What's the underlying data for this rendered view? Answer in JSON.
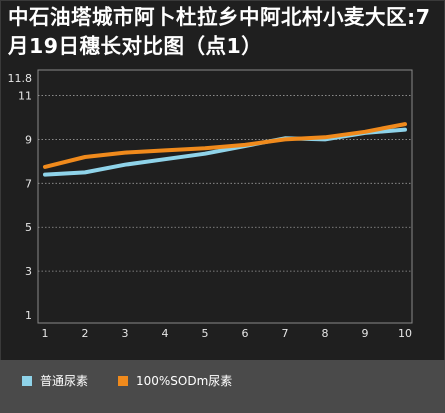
{
  "chart_data": {
    "type": "line",
    "title": "中石油塔城市阿卜杜拉乡中阿北村小麦大区:7月19日穗长对比图（点1）",
    "xlabel": "",
    "ylabel": "",
    "x": [
      1,
      2,
      3,
      4,
      5,
      6,
      7,
      8,
      9,
      10
    ],
    "x_ticks": [
      "1",
      "2",
      "3",
      "4",
      "5",
      "6",
      "7",
      "8",
      "9",
      "10"
    ],
    "y_ticks": [
      "1",
      "3",
      "5",
      "7",
      "9",
      "11",
      "11.8"
    ],
    "y_tick_values": [
      1,
      3,
      5,
      7,
      9,
      11,
      11.8
    ],
    "ylim": [
      1,
      11.8
    ],
    "grid": true,
    "legend_position": "bottom",
    "series": [
      {
        "name": "普通尿素",
        "color": "#8fd3e9",
        "values": [
          7.4,
          7.5,
          7.85,
          8.1,
          8.35,
          8.7,
          9.05,
          9.0,
          9.3,
          9.45
        ]
      },
      {
        "name": "100%SODm尿素",
        "color": "#f08a1c",
        "values": [
          7.75,
          8.2,
          8.4,
          8.5,
          8.6,
          8.75,
          9.0,
          9.1,
          9.35,
          9.7
        ]
      }
    ]
  }
}
